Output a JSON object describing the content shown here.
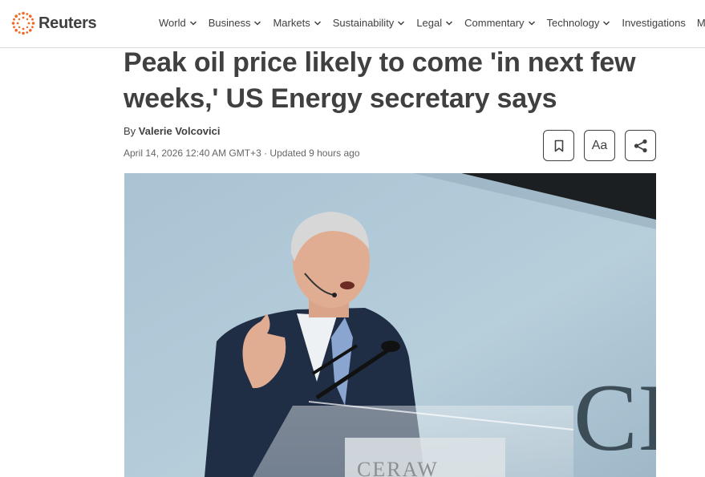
{
  "brand": {
    "name": "Reuters",
    "color": "#f26722"
  },
  "nav": {
    "items": [
      {
        "label": "World",
        "dropdown": true
      },
      {
        "label": "Business",
        "dropdown": true
      },
      {
        "label": "Markets",
        "dropdown": true
      },
      {
        "label": "Sustainability",
        "dropdown": true
      },
      {
        "label": "Legal",
        "dropdown": true
      },
      {
        "label": "Commentary",
        "dropdown": true
      },
      {
        "label": "Technology",
        "dropdown": true
      },
      {
        "label": "Investigations",
        "dropdown": false
      },
      {
        "label": "Mo",
        "dropdown": false
      }
    ]
  },
  "article": {
    "headline": "Peak oil price likely to come 'in next few weeks,' US Energy secretary says",
    "byline_prefix": "By",
    "author": "Valerie Volcovici",
    "dateline": "April 14, 2026 12:40 AM GMT+3 · Updated 9 hours ago",
    "tools": {
      "bookmark_icon": "bookmark-icon",
      "text_size_label": "Aa",
      "share_icon": "share-icon"
    },
    "photo": {
      "backdrop_text": "CI",
      "podium_text": "CERAW"
    }
  }
}
